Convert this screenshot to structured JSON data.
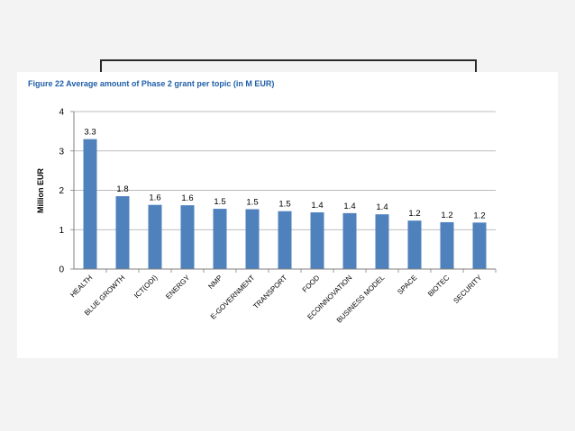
{
  "chart_data": {
    "type": "bar",
    "title": "Figure 22 Average amount of Phase 2 grant per topic (in M EUR)",
    "xlabel": "",
    "ylabel": "Million EUR",
    "ylim": [
      0,
      4
    ],
    "yticks": [
      "0",
      "1",
      "2",
      "3",
      "4"
    ],
    "grid": true,
    "legend": "none",
    "categories": [
      "HEALTH",
      "BLUE GROWTH",
      "ICT(ODI)",
      "ENERGY",
      "NMP",
      "E-GOVERNMENT",
      "TRANSPORT",
      "FOOD",
      "ECOINNOVATION",
      "BUSINESS MODEL",
      "SPACE",
      "BIOTEC",
      "SECURITY"
    ],
    "values": [
      3.3,
      1.8,
      1.6,
      1.6,
      1.5,
      1.5,
      1.5,
      1.4,
      1.4,
      1.4,
      1.2,
      1.2,
      1.2
    ],
    "bar_heights": [
      3.3,
      1.85,
      1.63,
      1.62,
      1.53,
      1.52,
      1.47,
      1.44,
      1.42,
      1.39,
      1.23,
      1.19,
      1.18
    ],
    "data_labels": [
      "3.3",
      "1.8",
      "1.6",
      "1.6",
      "1.5",
      "1.5",
      "1.5",
      "1.4",
      "1.4",
      "1.4",
      "1.2",
      "1.2",
      "1.2"
    ]
  },
  "colors": {
    "bar": "#4f81bd",
    "title": "#1f5fa8",
    "grid": "#a6a6a6",
    "axis": "#7f7f7f",
    "text": "#000000"
  }
}
